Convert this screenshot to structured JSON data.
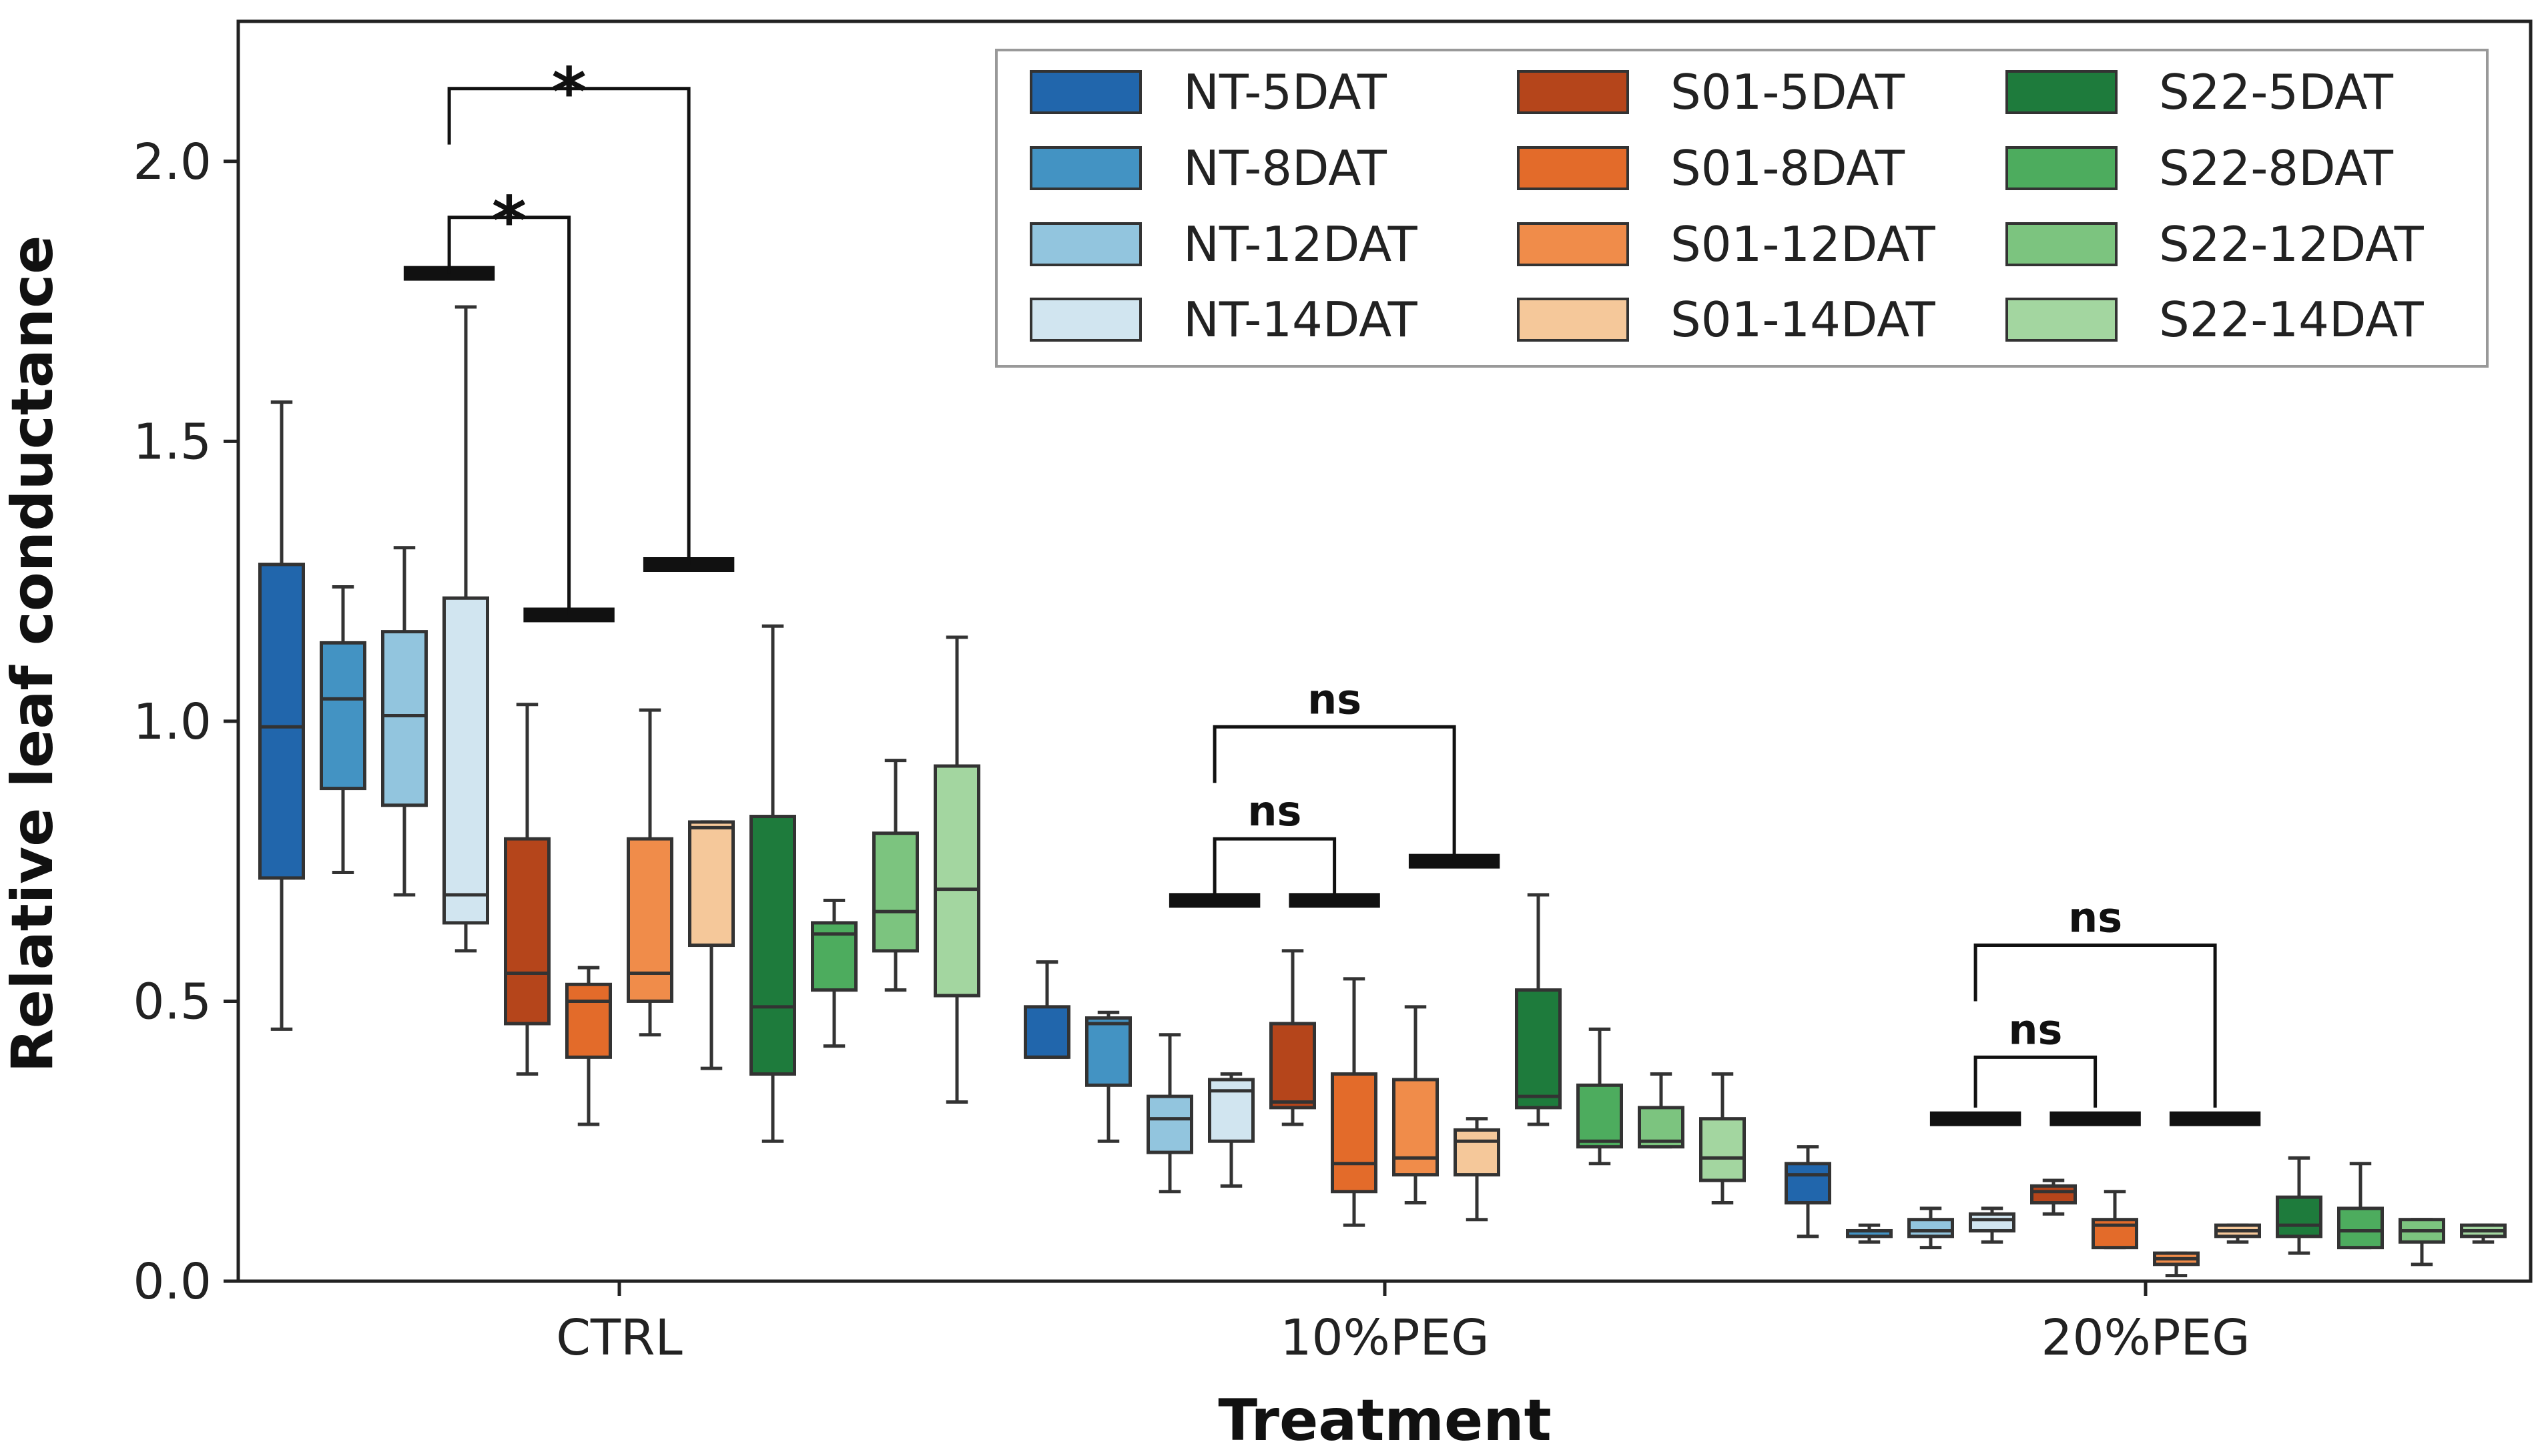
{
  "chart_data": {
    "type": "box",
    "title": "",
    "xlabel": "Treatment",
    "ylabel": "Relative leaf conductance",
    "ylim": [
      0,
      2.25
    ],
    "yticks": [
      0.0,
      0.5,
      1.0,
      1.5,
      2.0
    ],
    "ytick_labels": [
      "0.0",
      "0.5",
      "1.0",
      "1.5",
      "2.0"
    ],
    "categories": [
      "CTRL",
      "10%PEG",
      "20%PEG"
    ],
    "legend_position": "top-right",
    "series": [
      {
        "name": "NT-5DAT",
        "color": "#2166ac",
        "boxes": [
          [
            0.45,
            0.72,
            0.99,
            1.28,
            1.57
          ],
          [
            0.57,
            0.4,
            0.4,
            0.49,
            0.57
          ],
          [
            0.08,
            0.14,
            0.19,
            0.21,
            0.24
          ]
        ]
      },
      {
        "name": "NT-8DAT",
        "color": "#4393c3",
        "boxes": [
          [
            0.73,
            0.88,
            1.04,
            1.14,
            1.24
          ],
          [
            0.25,
            0.35,
            0.46,
            0.47,
            0.48
          ],
          [
            0.07,
            0.08,
            0.09,
            0.09,
            0.1
          ]
        ]
      },
      {
        "name": "NT-12DAT",
        "color": "#92c5de",
        "boxes": [
          [
            0.69,
            0.85,
            1.01,
            1.16,
            1.31
          ],
          [
            0.16,
            0.23,
            0.29,
            0.33,
            0.44
          ],
          [
            0.06,
            0.08,
            0.09,
            0.11,
            0.13
          ]
        ]
      },
      {
        "name": "NT-14DAT",
        "color": "#d1e5f0",
        "boxes": [
          [
            0.59,
            0.64,
            0.69,
            1.22,
            1.74
          ],
          [
            0.17,
            0.25,
            0.34,
            0.36,
            0.37
          ],
          [
            0.07,
            0.09,
            0.11,
            0.12,
            0.13
          ]
        ]
      },
      {
        "name": "S01-5DAT",
        "color": "#b5451b",
        "boxes": [
          [
            0.37,
            0.46,
            0.55,
            0.79,
            1.03
          ],
          [
            0.28,
            0.31,
            0.32,
            0.46,
            0.59
          ],
          [
            0.12,
            0.14,
            0.16,
            0.17,
            0.18
          ]
        ]
      },
      {
        "name": "S01-8DAT",
        "color": "#e36b2a",
        "boxes": [
          [
            0.28,
            0.4,
            0.5,
            0.53,
            0.56
          ],
          [
            0.1,
            0.16,
            0.21,
            0.37,
            0.54
          ],
          [
            0.06,
            0.06,
            0.1,
            0.11,
            0.16
          ]
        ]
      },
      {
        "name": "S01-12DAT",
        "color": "#f08c4a",
        "boxes": [
          [
            0.44,
            0.5,
            0.55,
            0.79,
            1.02
          ],
          [
            0.14,
            0.19,
            0.22,
            0.36,
            0.49
          ],
          [
            0.01,
            0.03,
            0.04,
            0.05,
            0.05
          ]
        ]
      },
      {
        "name": "S01-14DAT",
        "color": "#f5c89a",
        "boxes": [
          [
            0.38,
            0.6,
            0.81,
            0.82,
            0.82
          ],
          [
            0.11,
            0.19,
            0.25,
            0.27,
            0.29
          ],
          [
            0.07,
            0.08,
            0.09,
            0.1,
            0.1
          ]
        ]
      },
      {
        "name": "S22-5DAT",
        "color": "#1e7b3c",
        "boxes": [
          [
            0.25,
            0.37,
            0.49,
            0.83,
            1.17
          ],
          [
            0.28,
            0.31,
            0.33,
            0.52,
            0.69
          ],
          [
            0.05,
            0.08,
            0.1,
            0.15,
            0.22
          ]
        ]
      },
      {
        "name": "S22-8DAT",
        "color": "#4dac5e",
        "boxes": [
          [
            0.42,
            0.52,
            0.62,
            0.64,
            0.68
          ],
          [
            0.21,
            0.24,
            0.25,
            0.35,
            0.45
          ],
          [
            0.06,
            0.06,
            0.09,
            0.13,
            0.21
          ]
        ]
      },
      {
        "name": "S22-12DAT",
        "color": "#7cc47f",
        "boxes": [
          [
            0.52,
            0.59,
            0.66,
            0.8,
            0.93
          ],
          [
            0.24,
            0.24,
            0.25,
            0.31,
            0.37
          ],
          [
            0.03,
            0.07,
            0.09,
            0.11,
            0.11
          ]
        ]
      },
      {
        "name": "S22-14DAT",
        "color": "#a3d6a0",
        "boxes": [
          [
            0.32,
            0.51,
            0.7,
            0.92,
            1.15
          ],
          [
            0.14,
            0.18,
            0.22,
            0.29,
            0.37
          ],
          [
            0.07,
            0.08,
            0.09,
            0.1,
            0.1
          ]
        ]
      }
    ],
    "significance_bars": [
      {
        "y": 1.8,
        "x0": 0.6,
        "x1": 0.98
      },
      {
        "y": 1.19,
        "x0": 1.1,
        "x1": 1.48
      },
      {
        "y": 1.28,
        "x0": 1.6,
        "x1": 1.98
      },
      {
        "y": 0.68,
        "x0": 3.6,
        "x1": 3.98
      },
      {
        "y": 0.68,
        "x0": 4.1,
        "x1": 4.48
      },
      {
        "y": 0.75,
        "x0": 4.6,
        "x1": 4.98
      },
      {
        "y": 0.29,
        "x0": 6.6,
        "x1": 6.98
      },
      {
        "y": 0.29,
        "x0": 7.1,
        "x1": 7.48
      },
      {
        "y": 0.29,
        "x0": 7.6,
        "x1": 7.98
      }
    ],
    "significance_brackets": [
      {
        "x_left": 0.79,
        "x_right": 1.29,
        "y_top": 1.9,
        "y_left_bottom": 1.8,
        "y_right_bottom": 1.19,
        "label": "*"
      },
      {
        "x_left": 0.79,
        "x_right": 1.79,
        "y_top": 2.13,
        "y_left_bottom": 2.03,
        "y_right_bottom": 1.28,
        "label": "*"
      },
      {
        "x_left": 3.79,
        "x_right": 4.29,
        "y_top": 0.79,
        "y_left_bottom": 0.69,
        "y_right_bottom": 0.69,
        "label": "ns"
      },
      {
        "x_left": 3.79,
        "x_right": 4.79,
        "y_top": 0.99,
        "y_left_bottom": 0.89,
        "y_right_bottom": 0.75,
        "label": "ns"
      },
      {
        "x_left": 6.79,
        "x_right": 7.29,
        "y_top": 0.4,
        "y_left_bottom": 0.31,
        "y_right_bottom": 0.31,
        "label": "ns"
      },
      {
        "x_left": 6.79,
        "x_right": 7.79,
        "y_top": 0.6,
        "y_left_bottom": 0.5,
        "y_right_bottom": 0.31,
        "label": "ns"
      }
    ]
  }
}
